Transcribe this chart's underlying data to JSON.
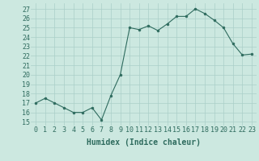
{
  "x": [
    0,
    1,
    2,
    3,
    4,
    5,
    6,
    7,
    8,
    9,
    10,
    11,
    12,
    13,
    14,
    15,
    16,
    17,
    18,
    19,
    20,
    21,
    22,
    23
  ],
  "y": [
    17,
    17.5,
    17,
    16.5,
    16,
    16,
    16.5,
    15.2,
    17.8,
    20,
    25,
    24.8,
    25.2,
    24.7,
    25.4,
    26.2,
    26.2,
    27,
    26.5,
    25.8,
    25,
    23.3,
    22.1,
    22.2
  ],
  "line_color": "#2e6b5e",
  "marker": "o",
  "marker_size": 2,
  "bg_color": "#cce8e0",
  "grid_color": "#aacfc8",
  "xlabel": "Humidex (Indice chaleur)",
  "ylabel_ticks": [
    15,
    16,
    17,
    18,
    19,
    20,
    21,
    22,
    23,
    24,
    25,
    26,
    27
  ],
  "ylim": [
    14.6,
    27.6
  ],
  "xlim": [
    -0.5,
    23.5
  ],
  "xlabel_fontsize": 7,
  "tick_fontsize": 6,
  "tick_color": "#2e6b5e",
  "label_color": "#2e6b5e"
}
